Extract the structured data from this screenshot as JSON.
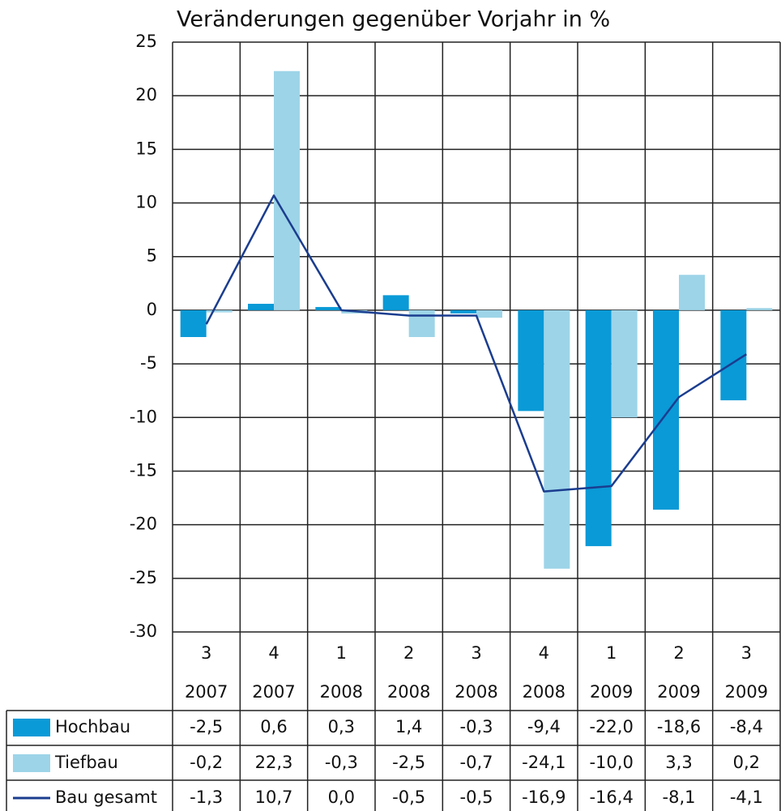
{
  "chart_data": {
    "type": "bar",
    "title": "Veränderungen gegenüber Vorjahr in %",
    "categories": [
      "3",
      "4",
      "1",
      "2",
      "3",
      "4",
      "1",
      "2",
      "3"
    ],
    "years": [
      "2007",
      "2007",
      "2008",
      "2008",
      "2008",
      "2008",
      "2009",
      "2009",
      "2009"
    ],
    "series": [
      {
        "name": "Hochbau",
        "type": "bar",
        "color": "#0a9ad7",
        "values": [
          -2.5,
          0.6,
          0.3,
          1.4,
          -0.3,
          -9.4,
          -22.0,
          -18.6,
          -8.4
        ],
        "value_labels": [
          "-2,5",
          "0,6",
          "0,3",
          "1,4",
          "-0,3",
          "-9,4",
          "-22,0",
          "-18,6",
          "-8,4"
        ]
      },
      {
        "name": "Tiefbau",
        "type": "bar",
        "color": "#9dd4e8",
        "values": [
          -0.2,
          22.3,
          -0.3,
          -2.5,
          -0.7,
          -24.1,
          -10.0,
          3.3,
          0.2
        ],
        "value_labels": [
          "-0,2",
          "22,3",
          "-0,3",
          "-2,5",
          "-0,7",
          "-24,1",
          "-10,0",
          "3,3",
          "0,2"
        ]
      },
      {
        "name": "Bau gesamt",
        "type": "line",
        "color": "#1b3d8f",
        "values": [
          -1.3,
          10.7,
          0.0,
          -0.5,
          -0.5,
          -16.9,
          -16.4,
          -8.1,
          -4.1
        ],
        "value_labels": [
          "-1,3",
          "10,7",
          "0,0",
          "-0,5",
          "-0,5",
          "-16,9",
          "-16,4",
          "-8,1",
          "-4,1"
        ]
      }
    ],
    "ylim": [
      -30,
      25
    ],
    "yticks": [
      25,
      20,
      15,
      10,
      5,
      0,
      -5,
      -10,
      -15,
      -20,
      -25,
      -30
    ],
    "grid": true
  }
}
